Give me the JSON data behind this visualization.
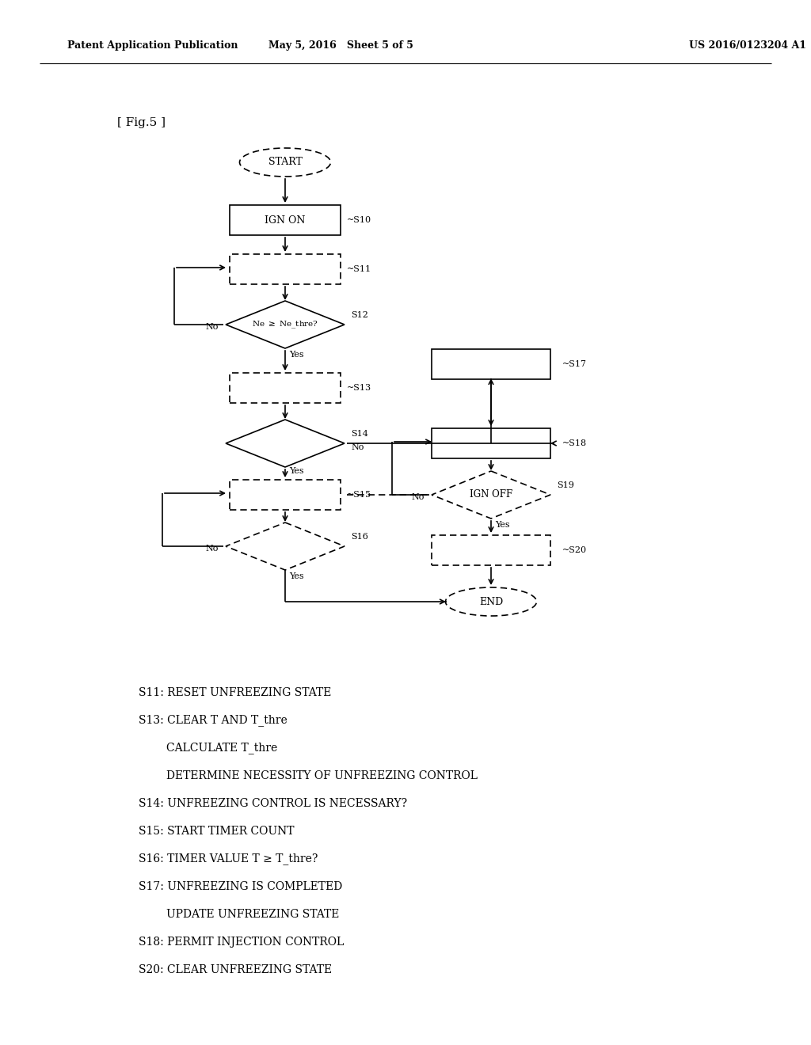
{
  "title_left": "Patent Application Publication",
  "title_mid": "May 5, 2016   Sheet 5 of 5",
  "title_right": "US 2016/0123204 A1",
  "fig_label": "[ Fig.5 ]",
  "background": "#ffffff",
  "legend_lines": [
    "S11: RESET UNFREEZING STATE",
    "S13: CLEAR T AND T_thre",
    "        CALCULATE T_thre",
    "        DETERMINE NECESSITY OF UNFREEZING CONTROL",
    "S14: UNFREEZING CONTROL IS NECESSARY?",
    "S15: START TIMER COUNT",
    "S16: TIMER VALUE T ≥ T_thre?",
    "S17: UNFREEZING IS COMPLETED",
    "        UPDATE UNFREEZING STATE",
    "S18: PERMIT INJECTION CONTROL",
    "S20: CLEAR UNFREEZING STATE"
  ]
}
